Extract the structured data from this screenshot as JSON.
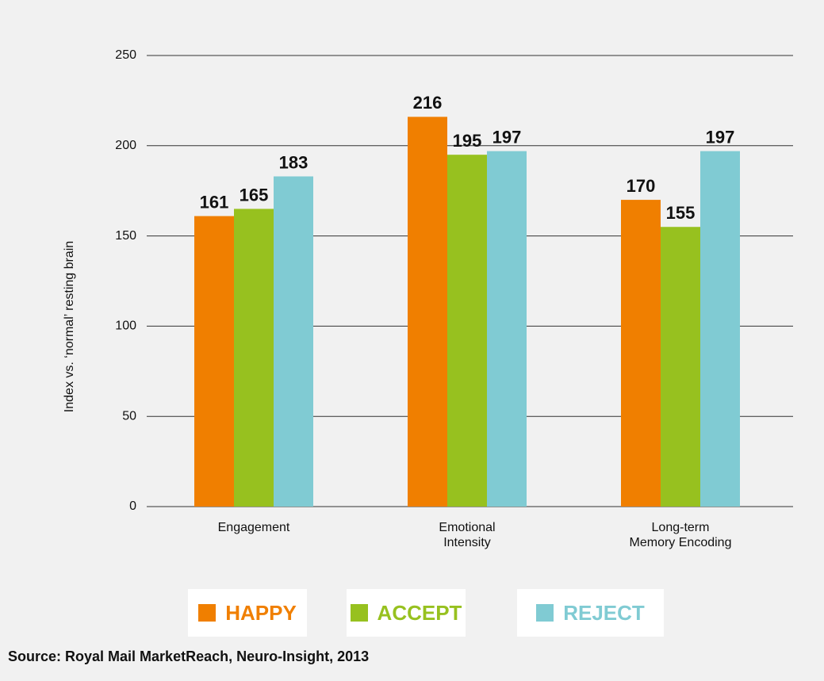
{
  "chart_data": {
    "type": "bar",
    "y_label": "Index vs. ‘normal’ resting brain",
    "categories": [
      "Engagement",
      "Emotional\nIntensity",
      "Long-term\nMemory Encoding"
    ],
    "series": [
      {
        "name": "HAPPY",
        "color": "#f07f00",
        "values": [
          161,
          216,
          170
        ]
      },
      {
        "name": "ACCEPT",
        "color": "#97c11f",
        "values": [
          165,
          195,
          155
        ]
      },
      {
        "name": "REJECT",
        "color": "#80cbd3",
        "values": [
          183,
          197,
          197
        ]
      }
    ],
    "ylim": [
      0,
      250
    ],
    "yticks": [
      0,
      50,
      100,
      150,
      200,
      250
    ],
    "grid": true,
    "legend": "bottom",
    "source": "Source: Royal Mail MarketReach, Neuro-Insight, 2013"
  }
}
